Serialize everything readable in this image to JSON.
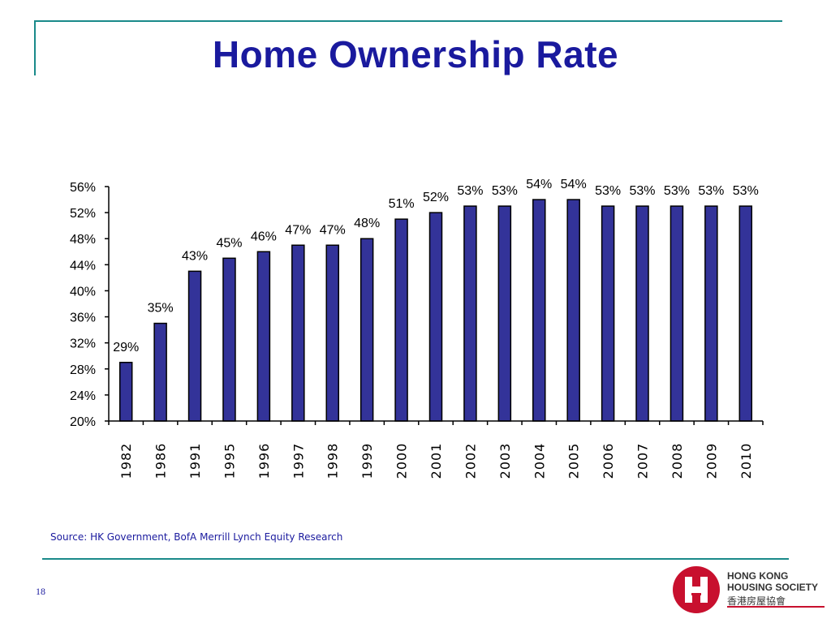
{
  "title": "Home Ownership Rate",
  "source": "Source: HK Government, BofA Merrill Lynch Equity Research",
  "page_number": "18",
  "logo": {
    "name_line1": "HONG KONG",
    "name_line2": "HOUSING SOCIETY",
    "name_cn": "香港房屋協會"
  },
  "colors": {
    "title": "#1a1a9e",
    "bar_fill": "#333399",
    "accent_line": "#1a8a8a",
    "logo_red": "#c8102e"
  },
  "chart_data": {
    "type": "bar",
    "categories": [
      "1982",
      "1986",
      "1991",
      "1995",
      "1996",
      "1997",
      "1998",
      "1999",
      "2000",
      "2001",
      "2002",
      "2003",
      "2004",
      "2005",
      "2006",
      "2007",
      "2008",
      "2009",
      "2010"
    ],
    "values": [
      29,
      35,
      43,
      45,
      46,
      47,
      47,
      48,
      51,
      52,
      53,
      53,
      54,
      54,
      53,
      53,
      53,
      53,
      53
    ],
    "data_labels": [
      "29%",
      "35%",
      "43%",
      "45%",
      "46%",
      "47%",
      "47%",
      "48%",
      "51%",
      "52%",
      "53%",
      "53%",
      "54%",
      "54%",
      "53%",
      "53%",
      "53%",
      "53%",
      "53%"
    ],
    "ylim": [
      20,
      56
    ],
    "yticks": [
      20,
      24,
      28,
      32,
      36,
      40,
      44,
      48,
      52,
      56
    ],
    "ytick_labels": [
      "20%",
      "24%",
      "28%",
      "32%",
      "36%",
      "40%",
      "44%",
      "48%",
      "52%",
      "56%"
    ],
    "grid": false,
    "xlabel": "",
    "ylabel": ""
  }
}
